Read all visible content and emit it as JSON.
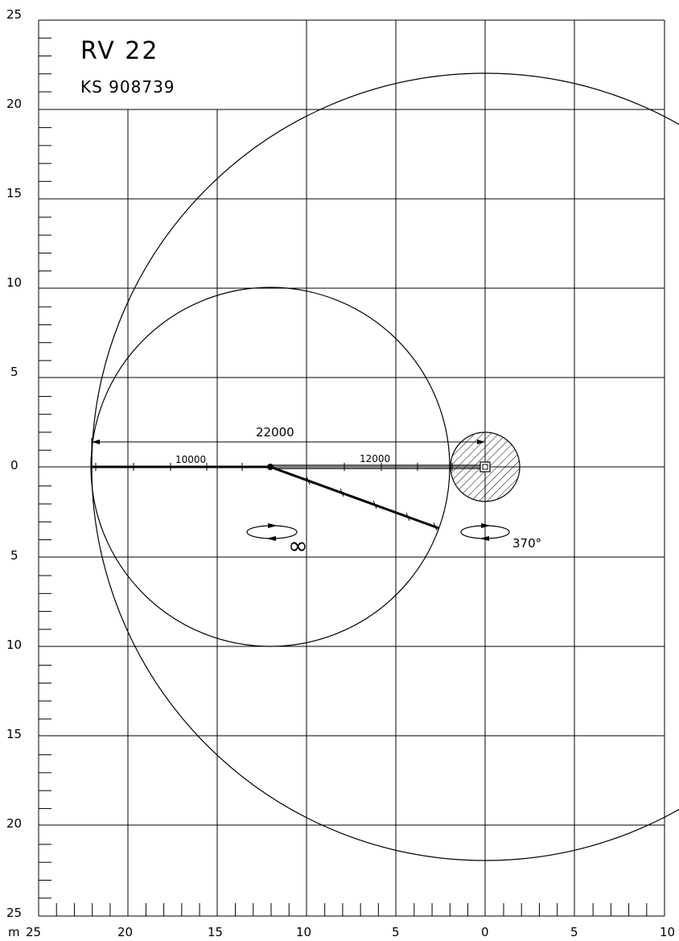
{
  "title": "RV 22",
  "subtitle": "KS 908739",
  "unit_label": "m",
  "left_ticks": [
    "25",
    "20",
    "15",
    "10",
    "5",
    "0",
    "5",
    "10",
    "15",
    "20",
    "25"
  ],
  "bottom_ticks": [
    "25",
    "20",
    "15",
    "10",
    "5",
    "0",
    "5",
    "10"
  ],
  "dimensions": {
    "total": "22000",
    "first_boom": "10000",
    "second_boom": "12000"
  },
  "rotation_infinite": "∞",
  "rotation_slew": "370°",
  "chart_data": {
    "type": "diagram",
    "x_range": [
      -25,
      10
    ],
    "y_range": [
      -25,
      25
    ],
    "max_reach_radius": 22,
    "inner_reach_radius": 10,
    "inner_reach_center": [
      -12.25,
      0
    ],
    "booms": [
      {
        "label": "12000",
        "from": [
          0,
          0
        ],
        "to": [
          -12,
          0
        ]
      },
      {
        "label": "10000",
        "from": [
          -12,
          0
        ],
        "to": [
          -22,
          0
        ]
      }
    ],
    "swung_boom_tip": [
      -2.7,
      -3.3
    ]
  }
}
